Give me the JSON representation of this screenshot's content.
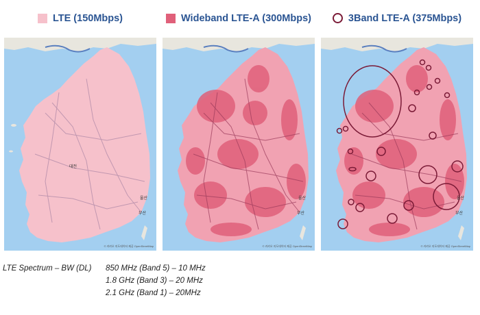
{
  "panels": [
    {
      "legend": "LTE (150Mbps)",
      "swatch_color": "#f6c1cb",
      "marker": "square"
    },
    {
      "legend": "Wideband LTE-A (300Mbps)",
      "swatch_color": "#e0607a",
      "marker": "square"
    },
    {
      "legend": "3Band LTE-A (375Mbps)",
      "swatch_color": "#7a1a36",
      "marker": "circle-outline"
    }
  ],
  "map": {
    "city_labels": [
      "대전",
      "부산",
      "울산"
    ],
    "attribution": "© 카카오 지도데이터 제공 OpenStreetMap"
  },
  "spectrum": {
    "label": "LTE Spectrum – BW (DL)",
    "rows": [
      "850 MHz (Band 5) – 10 MHz",
      "1.8 GHz (Band 3) – 20 MHz",
      "2.1 GHz (Band 1) – 20MHz"
    ]
  },
  "colors": {
    "sea": "#a3cff0",
    "land": "#e8e6de",
    "lte": "#f6c1cb",
    "wideband": "#e0607a",
    "circle": "#7a1a36"
  }
}
